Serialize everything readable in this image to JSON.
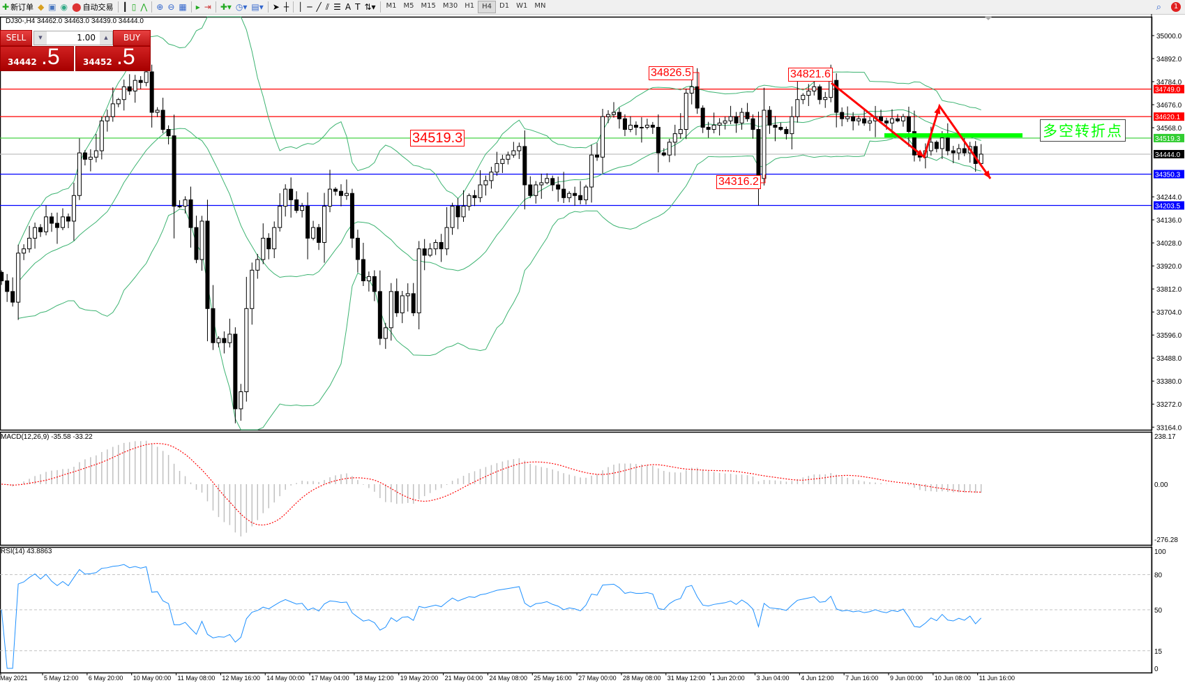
{
  "toolbar": {
    "new_order": "新订单",
    "auto_trading": "自动交易",
    "timeframes": [
      "M1",
      "M5",
      "M15",
      "M30",
      "H1",
      "H4",
      "D1",
      "W1",
      "MN"
    ],
    "active_timeframe": "H4",
    "notification_count": "1"
  },
  "chart": {
    "info": "DJ30-,H4  34462.0 34463.0 34439.0 34444.0",
    "one_click": {
      "sell_label": "SELL",
      "buy_label": "BUY",
      "lot": "1.00",
      "sell_price_main": "34442",
      "sell_price_frac": ".5",
      "buy_price_main": "34452",
      "buy_price_frac": ".5"
    },
    "annotations": {
      "high1": "34826.5",
      "high2": "34821.6",
      "level": "34519.3",
      "low1": "34316.2",
      "pivot_text": "多空转折点"
    },
    "price_axis": [
      "35000.0",
      "34892.0",
      "34784.0",
      "34676.0",
      "34568.0",
      "34244.0",
      "34136.0",
      "34028.0",
      "33920.0",
      "33812.0",
      "33704.0",
      "33596.0",
      "33488.0",
      "33380.0",
      "33272.0",
      "33164.0"
    ],
    "hlines": [
      {
        "price": 34749.0,
        "label": "34749.0",
        "color": "#ff0000"
      },
      {
        "price": 34620.1,
        "label": "34620.1",
        "color": "#ff0000"
      },
      {
        "price": 34519.3,
        "label": "34519.3",
        "color": "#32cd32"
      },
      {
        "price": 34444.0,
        "label": "34444.0",
        "color": "#c0c0c0",
        "label_bg": "#000000"
      },
      {
        "price": 34350.3,
        "label": "34350.3",
        "color": "#0000ff"
      },
      {
        "price": 34203.5,
        "label": "34203.5",
        "color": "#0000ff"
      }
    ],
    "colors": {
      "bands": "#3cb371",
      "arrow": "#ff0000",
      "pivot_bar": "#00ff00",
      "rsi": "#1e90ff",
      "macd_signal": "#ff0000",
      "macd_hist": "#c0c0c0"
    },
    "time_axis": [
      "May 2021",
      "5 May 12:00",
      "6 May 20:00",
      "10 May 00:00",
      "11 May 08:00",
      "12 May 16:00",
      "14 May 00:00",
      "17 May 04:00",
      "18 May 12:00",
      "19 May 20:00",
      "21 May 04:00",
      "24 May 08:00",
      "25 May 16:00",
      "27 May 00:00",
      "28 May 08:00",
      "31 May 12:00",
      "1 Jun 20:00",
      "3 Jun 04:00",
      "4 Jun 12:00",
      "7 Jun 16:00",
      "9 Jun 00:00",
      "10 Jun 08:00",
      "11 Jun 16:00"
    ]
  },
  "macd": {
    "label": "MACD(12,26,9) -35.58 -33.22",
    "max": "238.17",
    "zero": "0.00",
    "min": "-276.28"
  },
  "rsi": {
    "label": "RSI(14) 43.8863",
    "levels": [
      "100",
      "80",
      "50",
      "15",
      "0"
    ]
  },
  "chart_data": {
    "type": "candlestick",
    "symbol": "DJ30-",
    "timeframe": "H4",
    "ylim": [
      33164,
      35000
    ],
    "closes": [
      33850,
      33800,
      33750,
      33980,
      34000,
      34050,
      34100,
      34080,
      34150,
      34120,
      34100,
      34150,
      34130,
      34250,
      34450,
      34420,
      34430,
      34460,
      34600,
      34620,
      34680,
      34700,
      34760,
      34740,
      34790,
      34780,
      34830,
      34640,
      34650,
      34560,
      34530,
      34200,
      34200,
      34230,
      34100,
      33950,
      34130,
      33720,
      33560,
      33580,
      33560,
      33600,
      33250,
      33330,
      33720,
      33900,
      33950,
      34050,
      34000,
      34100,
      34200,
      34280,
      34230,
      34180,
      34200,
      34050,
      34100,
      34030,
      34200,
      34280,
      34270,
      34250,
      34260,
      34050,
      33950,
      33850,
      33870,
      33800,
      33580,
      33630,
      33800,
      33700,
      33780,
      33790,
      33700,
      34000,
      33970,
      34000,
      34030,
      34000,
      34100,
      34200,
      34150,
      34200,
      34250,
      34240,
      34300,
      34320,
      34360,
      34400,
      34420,
      34440,
      34460,
      34480,
      34300,
      34250,
      34300,
      34310,
      34330,
      34300,
      34280,
      34240,
      34260,
      34250,
      34230,
      34290,
      34440,
      34430,
      34620,
      34630,
      34640,
      34610,
      34560,
      34580,
      34570,
      34570,
      34580,
      34570,
      34450,
      34440,
      34500,
      34540,
      34560,
      34730,
      34760,
      34660,
      34570,
      34560,
      34580,
      34590,
      34600,
      34620,
      34590,
      34640,
      34610,
      34560,
      34330,
      34650,
      34580,
      34570,
      34560,
      34540,
      34620,
      34700,
      34720,
      34740,
      34760,
      34700,
      34710,
      34790,
      34640,
      34610,
      34620,
      34600,
      34610,
      34590,
      34600,
      34620,
      34600,
      34590,
      34610,
      34600,
      34620,
      34550,
      34440,
      34430,
      34460,
      34500,
      34470,
      34520,
      34460,
      34450,
      34470,
      34450,
      34480,
      34400,
      34444
    ]
  }
}
